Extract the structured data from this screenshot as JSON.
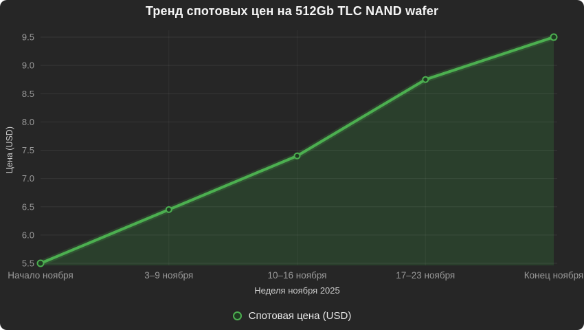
{
  "chart_data": {
    "type": "line",
    "title": "Тренд спотовых цен на 512Gb TLC NAND wafer",
    "xlabel": "Неделя ноября 2025",
    "ylabel": "Цена (USD)",
    "categories": [
      "Начало ноября",
      "3–9 ноября",
      "10–16 ноября",
      "17–23 ноября",
      "Конец ноября"
    ],
    "series": [
      {
        "name": "Спотовая цена (USD)",
        "values": [
          5.5,
          6.45,
          7.4,
          8.75,
          9.5
        ]
      }
    ],
    "ylim": [
      5.5,
      9.5
    ],
    "y_ticks": [
      "5.5",
      "6.0",
      "6.5",
      "7.0",
      "7.5",
      "8.0",
      "8.5",
      "9.0",
      "9.5"
    ],
    "grid": true,
    "legend_position": "bottom",
    "colors": {
      "line": "#4caf50",
      "area_fill": "#2a3f2c",
      "marker_fill": "#1f3a22",
      "background": "#262626",
      "gridline_opacity": "0.08",
      "tick_label": "#9a9a9a",
      "axis_label": "#cbcbcb",
      "title": "#f5f5f5",
      "legend_text": "#e8e8e8"
    }
  }
}
